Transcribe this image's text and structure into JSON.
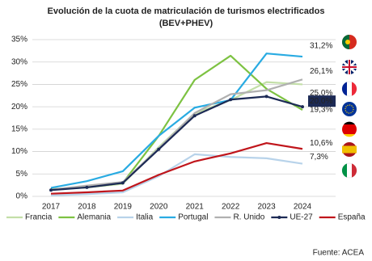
{
  "chart_data": {
    "type": "line",
    "title": "Evolución de la cuota de matriculación de turismos electrificados",
    "subtitle": "(BEV+PHEV)",
    "source": "Fuente: ACEA",
    "categories": [
      "2017",
      "2018",
      "2019",
      "2020",
      "2021",
      "2022",
      "2023",
      "2024"
    ],
    "ylim": [
      0,
      35
    ],
    "yticks": [
      {
        "value": 0,
        "label": "0%"
      },
      {
        "value": 5,
        "label": "5%"
      },
      {
        "value": 10,
        "label": "10%"
      },
      {
        "value": 15,
        "label": "15%"
      },
      {
        "value": 20,
        "label": "20%"
      },
      {
        "value": 25,
        "label": "25%"
      },
      {
        "value": 30,
        "label": "30%"
      },
      {
        "value": 35,
        "label": "35%"
      }
    ],
    "grid": true,
    "legend": "bottom",
    "series": [
      {
        "name": "Francia",
        "color": "#c3dfa8",
        "values": [
          1.5,
          2.0,
          2.8,
          11.0,
          18.5,
          21.5,
          25.5,
          25.0
        ],
        "value_labels": [
          null,
          null,
          null,
          null,
          null,
          null,
          null,
          "25,0%"
        ]
      },
      {
        "name": "Alemania",
        "color": "#7dc242",
        "values": [
          1.6,
          2.0,
          3.0,
          13.5,
          26.0,
          31.4,
          24.0,
          19.3
        ],
        "value_labels": [
          null,
          null,
          null,
          null,
          null,
          null,
          null,
          "19,3%"
        ]
      },
      {
        "name": "Italia",
        "color": "#b8d3ea",
        "values": [
          0.2,
          0.5,
          0.9,
          4.5,
          9.4,
          8.8,
          8.5,
          7.3
        ],
        "value_labels": [
          null,
          null,
          null,
          null,
          null,
          null,
          null,
          "7,3%"
        ]
      },
      {
        "name": "Portugal",
        "color": "#29abe2",
        "values": [
          1.9,
          3.4,
          5.6,
          13.5,
          19.8,
          21.5,
          31.9,
          31.2
        ],
        "value_labels": [
          null,
          null,
          null,
          null,
          null,
          null,
          null,
          "31,2%"
        ]
      },
      {
        "name": "R. Unido",
        "color": "#b0b0b0",
        "values": [
          1.5,
          2.4,
          3.2,
          10.7,
          18.6,
          22.8,
          23.7,
          26.1
        ],
        "value_labels": [
          null,
          null,
          null,
          null,
          null,
          null,
          null,
          "26,1%"
        ]
      },
      {
        "name": "UE-27",
        "color": "#1c2a55",
        "values": [
          1.4,
          2.0,
          3.0,
          10.5,
          18.0,
          21.6,
          22.3,
          20.0
        ],
        "value_labels": [
          null,
          null,
          null,
          null,
          null,
          null,
          null,
          "20,0%"
        ]
      },
      {
        "name": "España",
        "color": "#c0151b",
        "values": [
          0.6,
          0.9,
          1.3,
          4.8,
          7.8,
          9.6,
          11.9,
          10.6
        ],
        "value_labels": [
          null,
          null,
          null,
          null,
          null,
          null,
          null,
          "10,6%"
        ]
      }
    ]
  }
}
